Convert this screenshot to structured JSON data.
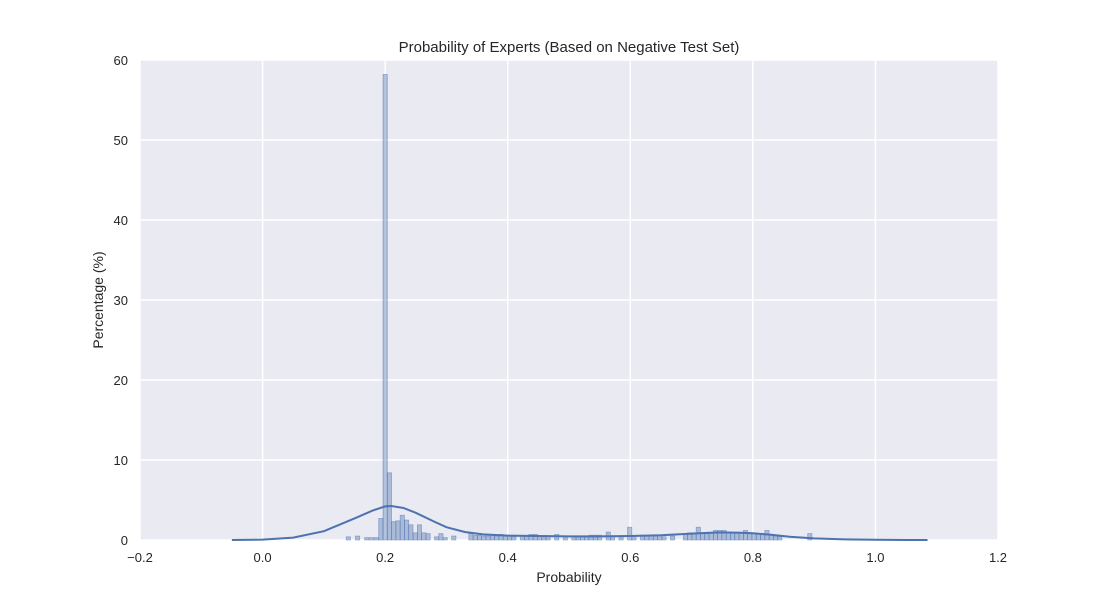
{
  "chart_data": {
    "type": "histogram",
    "title": "Probability of Experts (Based on Negative Test Set)",
    "xlabel": "Probability",
    "ylabel": "Percentage (%)",
    "xlim": [
      -0.2,
      1.2
    ],
    "ylim": [
      0,
      60
    ],
    "xticks": [
      "−0.2",
      "0.0",
      "0.2",
      "0.4",
      "0.6",
      "0.8",
      "1.0",
      "1.2"
    ],
    "xtick_values": [
      -0.2,
      0.0,
      0.2,
      0.4,
      0.6,
      0.8,
      1.0,
      1.2
    ],
    "yticks": [
      "0",
      "10",
      "20",
      "30",
      "40",
      "50",
      "60"
    ],
    "ytick_values": [
      0,
      10,
      20,
      30,
      40,
      50,
      60
    ],
    "grid": true,
    "background": "#eaeaf2",
    "bar_color": "#4c72b0",
    "bars": [
      {
        "x": 0.14,
        "y": 0.4
      },
      {
        "x": 0.155,
        "y": 0.5
      },
      {
        "x": 0.17,
        "y": 0.3
      },
      {
        "x": 0.178,
        "y": 0.3
      },
      {
        "x": 0.186,
        "y": 0.3
      },
      {
        "x": 0.193,
        "y": 2.7
      },
      {
        "x": 0.2,
        "y": 58.2
      },
      {
        "x": 0.207,
        "y": 8.4
      },
      {
        "x": 0.214,
        "y": 2.3
      },
      {
        "x": 0.221,
        "y": 2.4
      },
      {
        "x": 0.228,
        "y": 3.1
      },
      {
        "x": 0.235,
        "y": 2.5
      },
      {
        "x": 0.242,
        "y": 1.9
      },
      {
        "x": 0.249,
        "y": 0.9
      },
      {
        "x": 0.256,
        "y": 1.9
      },
      {
        "x": 0.263,
        "y": 0.9
      },
      {
        "x": 0.27,
        "y": 0.8
      },
      {
        "x": 0.284,
        "y": 0.4
      },
      {
        "x": 0.291,
        "y": 0.8
      },
      {
        "x": 0.298,
        "y": 0.3
      },
      {
        "x": 0.312,
        "y": 0.5
      },
      {
        "x": 0.34,
        "y": 0.8
      },
      {
        "x": 0.347,
        "y": 0.6
      },
      {
        "x": 0.354,
        "y": 0.6
      },
      {
        "x": 0.361,
        "y": 0.5
      },
      {
        "x": 0.368,
        "y": 0.5
      },
      {
        "x": 0.375,
        "y": 0.6
      },
      {
        "x": 0.382,
        "y": 0.5
      },
      {
        "x": 0.389,
        "y": 0.7
      },
      {
        "x": 0.396,
        "y": 0.5
      },
      {
        "x": 0.403,
        "y": 0.5
      },
      {
        "x": 0.41,
        "y": 0.4
      },
      {
        "x": 0.424,
        "y": 0.5
      },
      {
        "x": 0.431,
        "y": 0.5
      },
      {
        "x": 0.438,
        "y": 0.7
      },
      {
        "x": 0.445,
        "y": 0.7
      },
      {
        "x": 0.452,
        "y": 0.5
      },
      {
        "x": 0.459,
        "y": 0.4
      },
      {
        "x": 0.466,
        "y": 0.5
      },
      {
        "x": 0.48,
        "y": 0.7
      },
      {
        "x": 0.494,
        "y": 0.4
      },
      {
        "x": 0.508,
        "y": 0.4
      },
      {
        "x": 0.515,
        "y": 0.4
      },
      {
        "x": 0.522,
        "y": 0.5
      },
      {
        "x": 0.529,
        "y": 0.4
      },
      {
        "x": 0.536,
        "y": 0.6
      },
      {
        "x": 0.543,
        "y": 0.6
      },
      {
        "x": 0.55,
        "y": 0.6
      },
      {
        "x": 0.564,
        "y": 1.0
      },
      {
        "x": 0.571,
        "y": 0.5
      },
      {
        "x": 0.585,
        "y": 0.4
      },
      {
        "x": 0.599,
        "y": 1.6
      },
      {
        "x": 0.606,
        "y": 0.5
      },
      {
        "x": 0.62,
        "y": 0.6
      },
      {
        "x": 0.627,
        "y": 0.5
      },
      {
        "x": 0.634,
        "y": 0.6
      },
      {
        "x": 0.641,
        "y": 0.6
      },
      {
        "x": 0.648,
        "y": 0.6
      },
      {
        "x": 0.655,
        "y": 0.4
      },
      {
        "x": 0.669,
        "y": 0.5
      },
      {
        "x": 0.69,
        "y": 0.7
      },
      {
        "x": 0.697,
        "y": 0.9
      },
      {
        "x": 0.704,
        "y": 0.9
      },
      {
        "x": 0.711,
        "y": 1.6
      },
      {
        "x": 0.718,
        "y": 0.9
      },
      {
        "x": 0.725,
        "y": 0.8
      },
      {
        "x": 0.732,
        "y": 0.9
      },
      {
        "x": 0.739,
        "y": 1.2
      },
      {
        "x": 0.746,
        "y": 1.2
      },
      {
        "x": 0.753,
        "y": 1.2
      },
      {
        "x": 0.76,
        "y": 0.9
      },
      {
        "x": 0.767,
        "y": 0.9
      },
      {
        "x": 0.774,
        "y": 0.9
      },
      {
        "x": 0.781,
        "y": 0.9
      },
      {
        "x": 0.788,
        "y": 1.2
      },
      {
        "x": 0.795,
        "y": 0.9
      },
      {
        "x": 0.802,
        "y": 0.8
      },
      {
        "x": 0.809,
        "y": 0.8
      },
      {
        "x": 0.816,
        "y": 0.7
      },
      {
        "x": 0.823,
        "y": 1.2
      },
      {
        "x": 0.83,
        "y": 0.6
      },
      {
        "x": 0.837,
        "y": 0.5
      },
      {
        "x": 0.844,
        "y": 0.4
      },
      {
        "x": 0.893,
        "y": 0.8
      }
    ],
    "kde": [
      [
        -0.05,
        0.0
      ],
      [
        0.0,
        0.05
      ],
      [
        0.05,
        0.3
      ],
      [
        0.1,
        1.1
      ],
      [
        0.15,
        2.7
      ],
      [
        0.18,
        3.7
      ],
      [
        0.2,
        4.2
      ],
      [
        0.21,
        4.25
      ],
      [
        0.23,
        4.0
      ],
      [
        0.25,
        3.4
      ],
      [
        0.28,
        2.3
      ],
      [
        0.3,
        1.6
      ],
      [
        0.33,
        1.0
      ],
      [
        0.36,
        0.7
      ],
      [
        0.4,
        0.55
      ],
      [
        0.45,
        0.5
      ],
      [
        0.5,
        0.45
      ],
      [
        0.55,
        0.45
      ],
      [
        0.6,
        0.5
      ],
      [
        0.65,
        0.6
      ],
      [
        0.7,
        0.8
      ],
      [
        0.73,
        0.9
      ],
      [
        0.75,
        0.95
      ],
      [
        0.78,
        0.9
      ],
      [
        0.8,
        0.85
      ],
      [
        0.83,
        0.65
      ],
      [
        0.86,
        0.4
      ],
      [
        0.9,
        0.2
      ],
      [
        0.95,
        0.07
      ],
      [
        1.0,
        0.02
      ],
      [
        1.05,
        0.0
      ],
      [
        1.085,
        0.0
      ]
    ]
  }
}
